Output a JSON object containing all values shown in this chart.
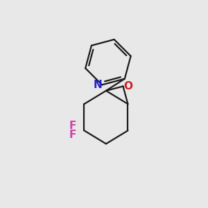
{
  "background_color": "#e8e8e8",
  "bond_color": "#1a1a1a",
  "N_color": "#2222cc",
  "O_color": "#cc2020",
  "F_color": "#cc44aa",
  "bond_width": 1.6,
  "figsize": [
    3.0,
    3.0
  ],
  "dpi": 100,
  "xlim": [
    0,
    10
  ],
  "ylim": [
    0,
    10
  ]
}
